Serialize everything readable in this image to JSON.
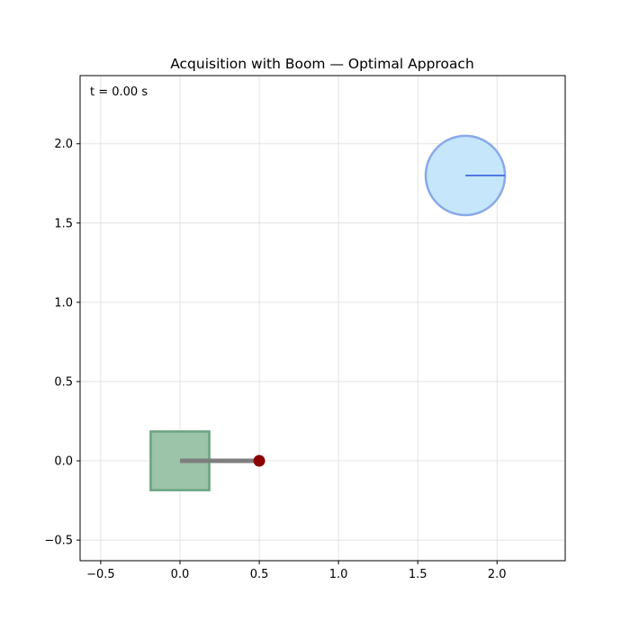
{
  "chart_data": {
    "type": "scatter",
    "title": "Acquisition with Boom — Optimal Approach",
    "time_label": "t = 0.00 s",
    "xlabel": "",
    "ylabel": "",
    "xlim": [
      -0.63,
      2.43
    ],
    "ylim": [
      -0.63,
      2.43
    ],
    "x_ticks": [
      -0.5,
      0.0,
      0.5,
      1.0,
      1.5,
      2.0
    ],
    "x_tick_labels": [
      "−0.5",
      "0.0",
      "0.5",
      "1.0",
      "1.5",
      "2.0"
    ],
    "y_ticks": [
      -0.5,
      0.0,
      0.5,
      1.0,
      1.5,
      2.0
    ],
    "y_tick_labels": [
      "−0.5",
      "0.0",
      "0.5",
      "1.0",
      "1.5",
      "2.0"
    ],
    "grid": true,
    "chaser": {
      "center": [
        0.0,
        0.0
      ],
      "half_width": 0.185,
      "fill": "#9cc4a8",
      "edge": "#6aa37f"
    },
    "boom": {
      "start": [
        0.0,
        0.0
      ],
      "end": [
        0.5,
        0.0
      ],
      "color": "#7f7f7f",
      "tip_color": "#8b0000"
    },
    "target": {
      "center": [
        1.8,
        1.8
      ],
      "radius": 0.25,
      "fill": "#c5e6fb",
      "edge": "#8aa9ea",
      "marker_end": [
        2.05,
        1.8
      ],
      "marker_color": "#4169e1"
    }
  }
}
